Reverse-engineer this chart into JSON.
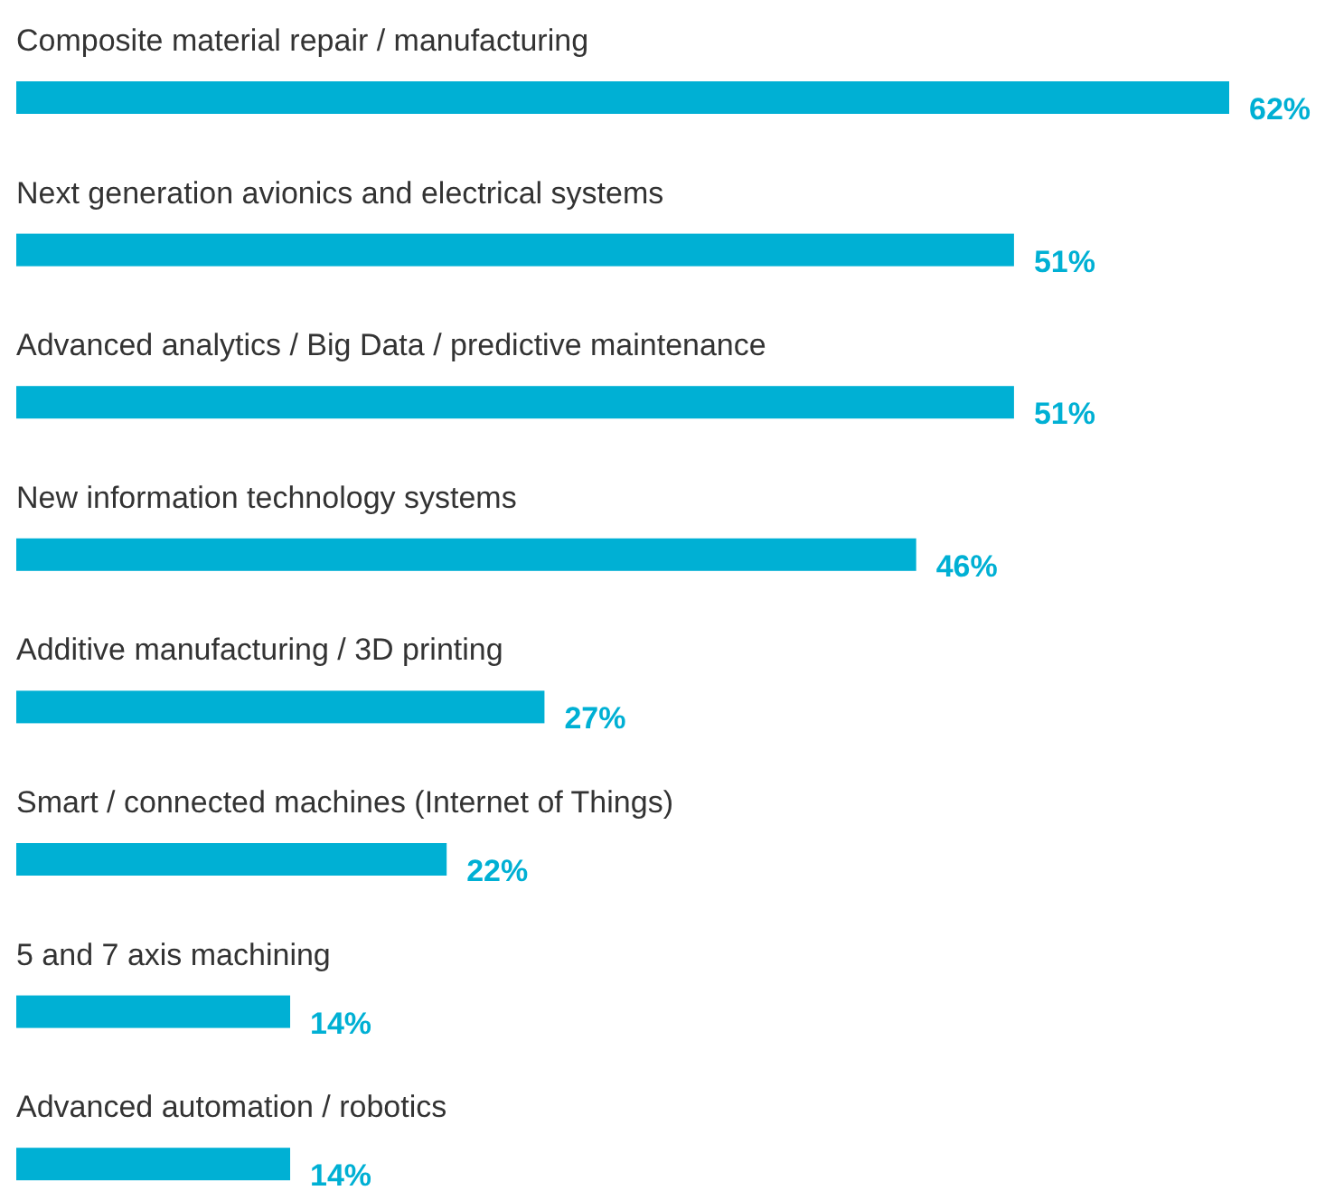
{
  "chart_data": {
    "type": "bar",
    "orientation": "horizontal",
    "categories": [
      "Composite material repair / manufacturing",
      "Next generation avionics and electrical systems",
      "Advanced analytics / Big Data / predictive maintenance",
      "New information technology systems",
      "Additive manufacturing / 3D printing",
      "Smart / connected machines (Internet of Things)",
      "5 and 7 axis machining",
      "Advanced automation / robotics"
    ],
    "values": [
      62,
      51,
      51,
      46,
      27,
      22,
      14,
      14
    ],
    "value_labels": [
      "62%",
      "51%",
      "51%",
      "46%",
      "27%",
      "22%",
      "14%",
      "14%"
    ],
    "color": "#00b0d4"
  }
}
